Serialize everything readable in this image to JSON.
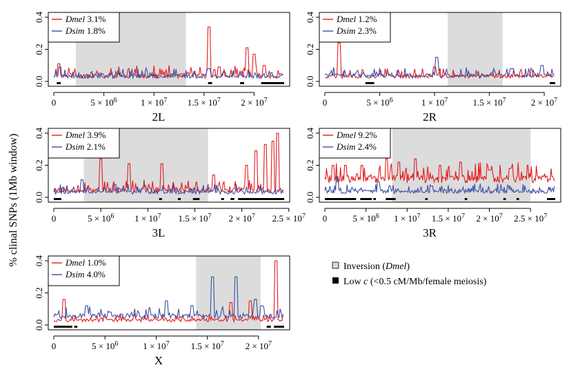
{
  "y_axis_label": "% clinal SNPs (1Mb window)",
  "global_legend": [
    {
      "label": "Inversion (",
      "label_italic": "Dmel",
      "label_tail": ")",
      "color": "#d9d9d9"
    },
    {
      "label": "Low ",
      "label_italic": "c",
      "label_tail": " (<0.5 cM/Mb/female meiosis)",
      "color": "#000000"
    }
  ],
  "chart_data": [
    {
      "type": "line",
      "chromosome": "2L",
      "xmax": 23000000,
      "ylim": [
        0,
        0.4
      ],
      "yticks": [
        "0.0",
        "0.2",
        "0.4"
      ],
      "xticks": [
        {
          "v": 0,
          "m": "0",
          "e": ""
        },
        {
          "v": 5000000,
          "m": "5 × 10",
          "e": "6"
        },
        {
          "v": 10000000,
          "m": "1 × 10",
          "e": "7"
        },
        {
          "v": 15000000,
          "m": "1.5 × 10",
          "e": "7"
        },
        {
          "v": 20000000,
          "m": "2 × 10",
          "e": "7"
        }
      ],
      "inversion": [
        2200000,
        13200000
      ],
      "low_c": [
        [
          300000,
          700000
        ],
        [
          15400000,
          15800000
        ],
        [
          18600000,
          19000000
        ],
        [
          20700000,
          23000000
        ]
      ],
      "series": [
        {
          "name": "Dmel",
          "pct": "3.1%",
          "color": "#e41a1c",
          "base": 0.02,
          "noise": 0.05,
          "seed": 11,
          "peaks": [
            [
              0.5,
              0.11
            ],
            [
              15.5,
              0.34
            ],
            [
              16.5,
              0.09
            ],
            [
              19.3,
              0.21
            ],
            [
              20,
              0.17
            ],
            [
              21,
              0.1
            ]
          ]
        },
        {
          "name": "Dsim",
          "pct": "1.8%",
          "color": "#3a4fa3",
          "base": 0.02,
          "noise": 0.04,
          "seed": 23,
          "peaks": [
            [
              0.6,
              0.09
            ],
            [
              15.5,
              0.08
            ],
            [
              17,
              0.06
            ]
          ]
        }
      ]
    },
    {
      "type": "line",
      "chromosome": "2R",
      "xmax": 21000000,
      "ylim": [
        0,
        0.4
      ],
      "yticks": [
        "0.0",
        "0.2",
        "0.4"
      ],
      "xticks": [
        {
          "v": 0,
          "m": "0",
          "e": ""
        },
        {
          "v": 5000000,
          "m": "5 × 10",
          "e": "6"
        },
        {
          "v": 10000000,
          "m": "1 × 10",
          "e": "7"
        },
        {
          "v": 15000000,
          "m": "1.5 × 10",
          "e": "7"
        },
        {
          "v": 20000000,
          "m": "2 × 10",
          "e": "7"
        }
      ],
      "inversion": [
        11200000,
        16200000
      ],
      "low_c": [
        [
          3700000,
          4500000
        ],
        [
          20500000,
          21000000
        ]
      ],
      "series": [
        {
          "name": "Dmel",
          "pct": "1.2%",
          "color": "#e41a1c",
          "base": 0.02,
          "noise": 0.04,
          "seed": 37,
          "peaks": [
            [
              1.3,
              0.24
            ],
            [
              10,
              0.09
            ]
          ]
        },
        {
          "name": "Dsim",
          "pct": "2.3%",
          "color": "#3a4fa3",
          "base": 0.025,
          "noise": 0.04,
          "seed": 41,
          "peaks": [
            [
              10.2,
              0.15
            ],
            [
              19.8,
              0.1
            ],
            [
              17,
              0.08
            ]
          ]
        }
      ]
    },
    {
      "type": "line",
      "chromosome": "3L",
      "xmax": 24500000,
      "ylim": [
        0,
        0.4
      ],
      "yticks": [
        "0.0",
        "0.2",
        "0.4"
      ],
      "xticks": [
        {
          "v": 0,
          "m": "0",
          "e": ""
        },
        {
          "v": 5000000,
          "m": "5 × 10",
          "e": "6"
        },
        {
          "v": 10000000,
          "m": "1 × 10",
          "e": "7"
        },
        {
          "v": 15000000,
          "m": "1.5 × 10",
          "e": "7"
        },
        {
          "v": 20000000,
          "m": "2 × 10",
          "e": "7"
        },
        {
          "v": 25000000,
          "m": "2.5 × 10",
          "e": "7"
        }
      ],
      "inversion": [
        3200000,
        16400000
      ],
      "low_c": [
        [
          0,
          800000
        ],
        [
          11200000,
          11500000
        ],
        [
          13200000,
          13500000
        ],
        [
          14800000,
          15500000
        ],
        [
          17800000,
          18100000
        ],
        [
          18800000,
          19200000
        ],
        [
          19600000,
          24500000
        ]
      ],
      "series": [
        {
          "name": "Dmel",
          "pct": "3.9%",
          "color": "#e41a1c",
          "base": 0.03,
          "noise": 0.05,
          "seed": 53,
          "peaks": [
            [
              5,
              0.24
            ],
            [
              8,
              0.21
            ],
            [
              11.5,
              0.21
            ],
            [
              17,
              0.14
            ],
            [
              20.5,
              0.2
            ],
            [
              21.5,
              0.29
            ],
            [
              22.5,
              0.33
            ],
            [
              23.3,
              0.35
            ],
            [
              23.8,
              0.4
            ]
          ]
        },
        {
          "name": "Dsim",
          "pct": "2.1%",
          "color": "#3a4fa3",
          "base": 0.02,
          "noise": 0.04,
          "seed": 61,
          "peaks": [
            [
              3,
              0.11
            ],
            [
              6.5,
              0.08
            ],
            [
              9.5,
              0.06
            ]
          ]
        }
      ]
    },
    {
      "type": "line",
      "chromosome": "3R",
      "xmax": 28000000,
      "ylim": [
        0,
        0.4
      ],
      "yticks": [
        "0.0",
        "0.2",
        "0.4"
      ],
      "xticks": [
        {
          "v": 0,
          "m": "0",
          "e": ""
        },
        {
          "v": 5000000,
          "m": "5 × 10",
          "e": "6"
        },
        {
          "v": 10000000,
          "m": "1 × 10",
          "e": "7"
        },
        {
          "v": 15000000,
          "m": "1.5 × 10",
          "e": "7"
        },
        {
          "v": 20000000,
          "m": "2 × 10",
          "e": "7"
        },
        {
          "v": 25000000,
          "m": "2.5 × 10",
          "e": "7"
        }
      ],
      "inversion": [
        8200000,
        25000000
      ],
      "low_c": [
        [
          0,
          3800000
        ],
        [
          4300000,
          5700000
        ],
        [
          5900000,
          6200000
        ],
        [
          7400000,
          8600000
        ],
        [
          12200000,
          12500000
        ],
        [
          17000000,
          17300000
        ],
        [
          21700000,
          22000000
        ],
        [
          23300000,
          23600000
        ],
        [
          27000000,
          28000000
        ]
      ],
      "series": [
        {
          "name": "Dmel",
          "pct": "9.2%",
          "color": "#e41a1c",
          "base": 0.09,
          "noise": 0.08,
          "seed": 71,
          "peaks": [
            [
              1,
              0.2
            ],
            [
              2.5,
              0.2
            ],
            [
              4.5,
              0.2
            ],
            [
              7.5,
              0.24
            ],
            [
              9,
              0.22
            ],
            [
              11,
              0.24
            ],
            [
              14,
              0.2
            ],
            [
              16.5,
              0.22
            ],
            [
              20,
              0.17
            ],
            [
              22.5,
              0.18
            ],
            [
              26.5,
              0.13
            ]
          ]
        },
        {
          "name": "Dsim",
          "pct": "2.4%",
          "color": "#3a4fa3",
          "base": 0.025,
          "noise": 0.04,
          "seed": 83,
          "peaks": [
            [
              1.5,
              0.13
            ],
            [
              6.5,
              0.1
            ],
            [
              13,
              0.07
            ]
          ]
        }
      ]
    },
    {
      "type": "line",
      "chromosome": "X",
      "xmax": 22500000,
      "ylim": [
        0,
        0.4
      ],
      "yticks": [
        "0.0",
        "0.2",
        "0.4"
      ],
      "xticks": [
        {
          "v": 0,
          "m": "0",
          "e": ""
        },
        {
          "v": 5000000,
          "m": "5 × 10",
          "e": "6"
        },
        {
          "v": 10000000,
          "m": "1 × 10",
          "e": "7"
        },
        {
          "v": 15000000,
          "m": "1.5 × 10",
          "e": "7"
        },
        {
          "v": 20000000,
          "m": "2 × 10",
          "e": "7"
        }
      ],
      "inversion": [
        13900000,
        20200000
      ],
      "low_c": [
        [
          0,
          1800000
        ],
        [
          2000000,
          2300000
        ],
        [
          20800000,
          21200000
        ],
        [
          21500000,
          22500000
        ]
      ],
      "series": [
        {
          "name": "Dmel",
          "pct": "1.0%",
          "color": "#e41a1c",
          "base": 0.02,
          "noise": 0.03,
          "seed": 97,
          "peaks": [
            [
              1,
              0.16
            ],
            [
              17.3,
              0.14
            ],
            [
              19.2,
              0.15
            ],
            [
              21.7,
              0.4
            ]
          ]
        },
        {
          "name": "Dsim",
          "pct": "4.0%",
          "color": "#3a4fa3",
          "base": 0.04,
          "noise": 0.05,
          "seed": 101,
          "peaks": [
            [
              3.2,
              0.12
            ],
            [
              5.5,
              0.08
            ],
            [
              11,
              0.15
            ],
            [
              13.5,
              0.12
            ],
            [
              15.5,
              0.3
            ],
            [
              17.8,
              0.3
            ],
            [
              19.7,
              0.16
            ],
            [
              20.3,
              0.12
            ]
          ]
        }
      ]
    }
  ]
}
